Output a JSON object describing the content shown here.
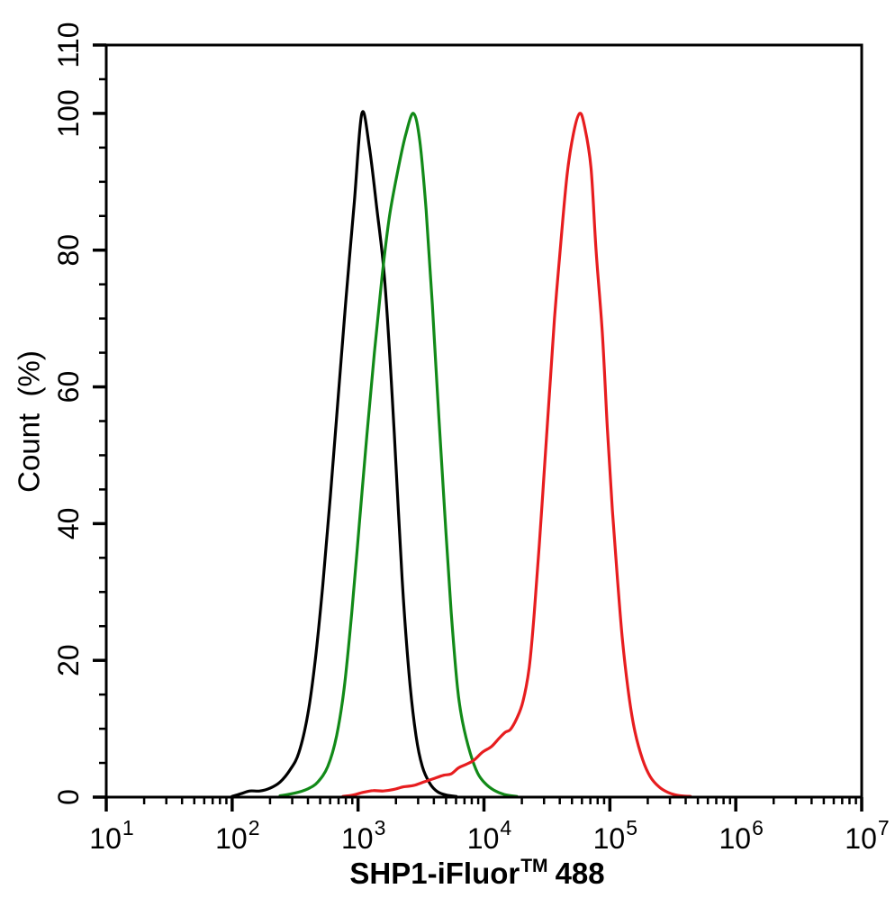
{
  "figure": {
    "background_color": "#ffffff",
    "frame_color": "#000000"
  },
  "chart_data": {
    "type": "line",
    "subtype": "flow-cytometry-histogram",
    "title": "",
    "xlabel": "SHP1-iFluor™ 488",
    "xlabel_parts": {
      "main": "SHP1-iFluor",
      "sup": "TM",
      "tail": "488"
    },
    "ylabel": "Count  (%)",
    "grid": false,
    "legend": null,
    "x_axis": {
      "scale": "log10",
      "min": 10,
      "max": 10000000,
      "tick_base": "10",
      "major_tick_exponents": [
        1,
        2,
        3,
        4,
        5,
        6,
        7
      ],
      "minor_ticks": "multiples 2-9 of each decade"
    },
    "y_axis": {
      "scale": "linear",
      "min": 0,
      "max": 110,
      "major_ticks": [
        0,
        20,
        40,
        60,
        80,
        100,
        110
      ],
      "minor_tick_step": 5
    },
    "series": [
      {
        "name": "black",
        "color": "#000000",
        "peak": {
          "x": 1070,
          "log10_x": 3.03,
          "count_pct": 100
        },
        "points_log10x_pct": [
          [
            2.0,
            0.1
          ],
          [
            2.07,
            0.5
          ],
          [
            2.14,
            0.9
          ],
          [
            2.22,
            0.9
          ],
          [
            2.3,
            1.3
          ],
          [
            2.38,
            2.2
          ],
          [
            2.46,
            4.0
          ],
          [
            2.53,
            6.5
          ],
          [
            2.6,
            12
          ],
          [
            2.66,
            20
          ],
          [
            2.72,
            31
          ],
          [
            2.78,
            44
          ],
          [
            2.84,
            58
          ],
          [
            2.9,
            72
          ],
          [
            2.97,
            87
          ],
          [
            3.03,
            100
          ],
          [
            3.09,
            95
          ],
          [
            3.15,
            86
          ],
          [
            3.21,
            76
          ],
          [
            3.27,
            59
          ],
          [
            3.32,
            42
          ],
          [
            3.36,
            29
          ],
          [
            3.41,
            17
          ],
          [
            3.46,
            9
          ],
          [
            3.51,
            4.5
          ],
          [
            3.57,
            2.0
          ],
          [
            3.63,
            0.8
          ],
          [
            3.7,
            0.3
          ],
          [
            3.78,
            0.1
          ]
        ]
      },
      {
        "name": "green",
        "color": "#128a18",
        "peak": {
          "x": 2750,
          "log10_x": 3.44,
          "count_pct": 100
        },
        "points_log10x_pct": [
          [
            2.38,
            0.2
          ],
          [
            2.5,
            0.6
          ],
          [
            2.6,
            1.2
          ],
          [
            2.68,
            2.2
          ],
          [
            2.76,
            4.5
          ],
          [
            2.83,
            9
          ],
          [
            2.89,
            16
          ],
          [
            2.95,
            27
          ],
          [
            3.01,
            40
          ],
          [
            3.07,
            53
          ],
          [
            3.13,
            65
          ],
          [
            3.19,
            76
          ],
          [
            3.25,
            85
          ],
          [
            3.32,
            92
          ],
          [
            3.38,
            97
          ],
          [
            3.44,
            100
          ],
          [
            3.49,
            96
          ],
          [
            3.54,
            86
          ],
          [
            3.59,
            72
          ],
          [
            3.64,
            56
          ],
          [
            3.69,
            41
          ],
          [
            3.74,
            27
          ],
          [
            3.79,
            16
          ],
          [
            3.83,
            11
          ],
          [
            3.89,
            6.5
          ],
          [
            3.95,
            3.5
          ],
          [
            4.01,
            2.0
          ],
          [
            4.08,
            1.0
          ],
          [
            4.16,
            0.4
          ],
          [
            4.26,
            0.1
          ]
        ]
      },
      {
        "name": "red",
        "color": "#e71d1f",
        "peak": {
          "x": 57000,
          "log10_x": 4.76,
          "count_pct": 100
        },
        "points_log10x_pct": [
          [
            2.88,
            0.1
          ],
          [
            2.96,
            0.3
          ],
          [
            3.04,
            0.7
          ],
          [
            3.12,
            0.95
          ],
          [
            3.2,
            0.9
          ],
          [
            3.28,
            1.1
          ],
          [
            3.36,
            1.5
          ],
          [
            3.44,
            1.7
          ],
          [
            3.52,
            2.2
          ],
          [
            3.6,
            2.7
          ],
          [
            3.68,
            3.2
          ],
          [
            3.74,
            3.4
          ],
          [
            3.8,
            4.3
          ],
          [
            3.86,
            4.8
          ],
          [
            3.92,
            5.4
          ],
          [
            3.99,
            6.6
          ],
          [
            4.06,
            7.4
          ],
          [
            4.12,
            8.6
          ],
          [
            4.17,
            9.5
          ],
          [
            4.21,
            9.9
          ],
          [
            4.26,
            11.5
          ],
          [
            4.31,
            14
          ],
          [
            4.36,
            19
          ],
          [
            4.4,
            27
          ],
          [
            4.44,
            37
          ],
          [
            4.48,
            48
          ],
          [
            4.52,
            59
          ],
          [
            4.56,
            70
          ],
          [
            4.61,
            81
          ],
          [
            4.66,
            91
          ],
          [
            4.71,
            97
          ],
          [
            4.76,
            100
          ],
          [
            4.8,
            98
          ],
          [
            4.85,
            92
          ],
          [
            4.89,
            80
          ],
          [
            4.94,
            68
          ],
          [
            4.98,
            54
          ],
          [
            5.02,
            42
          ],
          [
            5.06,
            32
          ],
          [
            5.1,
            23
          ],
          [
            5.15,
            15
          ],
          [
            5.2,
            9.5
          ],
          [
            5.26,
            5.5
          ],
          [
            5.32,
            3.0
          ],
          [
            5.39,
            1.5
          ],
          [
            5.46,
            0.7
          ],
          [
            5.54,
            0.25
          ],
          [
            5.64,
            0.1
          ]
        ]
      }
    ]
  }
}
